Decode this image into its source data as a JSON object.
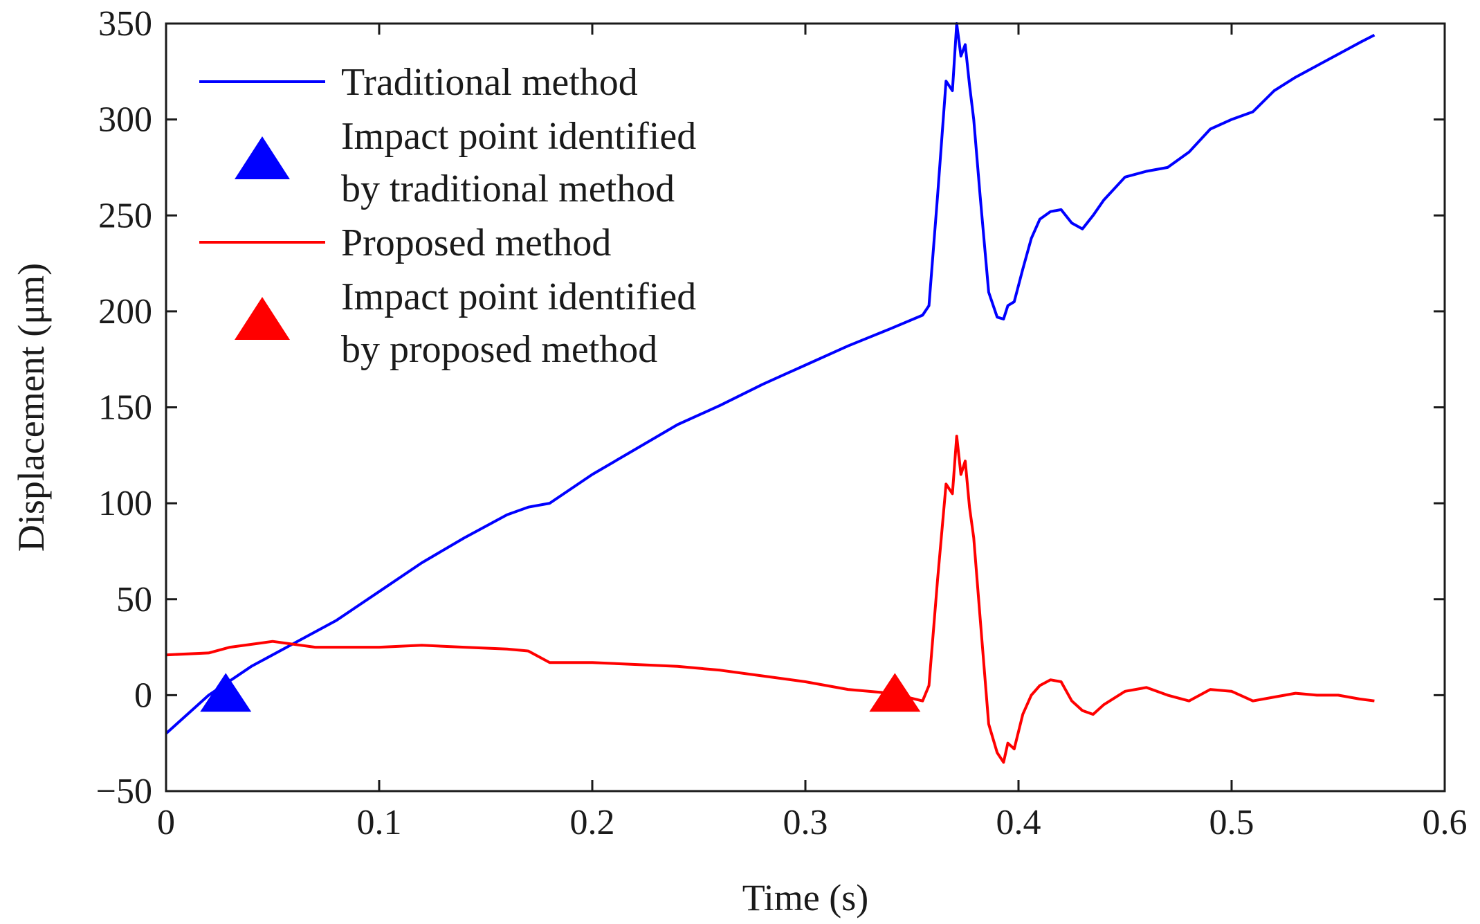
{
  "chart_data": {
    "type": "line",
    "title": "",
    "xlabel": "Time (s)",
    "ylabel": "Displacement (μm)",
    "xlim": [
      0,
      0.6
    ],
    "ylim": [
      -50,
      350
    ],
    "xticks": [
      0,
      0.1,
      0.2,
      0.3,
      0.4,
      0.5,
      0.6
    ],
    "xtick_labels": [
      "0",
      "0.1",
      "0.2",
      "0.3",
      "0.4",
      "0.5",
      "0.6"
    ],
    "yticks": [
      -50,
      0,
      50,
      100,
      150,
      200,
      250,
      300,
      350
    ],
    "ytick_labels": [
      "−50",
      "0",
      "50",
      "100",
      "150",
      "200",
      "250",
      "300",
      "350"
    ],
    "grid": false,
    "legend_position": "top-left",
    "series": [
      {
        "name": "Traditional method",
        "color": "#0000ff",
        "x": [
          0,
          0.02,
          0.04,
          0.06,
          0.08,
          0.1,
          0.12,
          0.14,
          0.16,
          0.17,
          0.18,
          0.2,
          0.22,
          0.24,
          0.26,
          0.28,
          0.3,
          0.32,
          0.34,
          0.355,
          0.358,
          0.362,
          0.366,
          0.369,
          0.371,
          0.373,
          0.375,
          0.377,
          0.379,
          0.382,
          0.386,
          0.39,
          0.393,
          0.395,
          0.398,
          0.402,
          0.406,
          0.41,
          0.415,
          0.42,
          0.425,
          0.43,
          0.435,
          0.44,
          0.45,
          0.46,
          0.47,
          0.48,
          0.49,
          0.5,
          0.51,
          0.52,
          0.53,
          0.54,
          0.55,
          0.56,
          0.567
        ],
        "values": [
          -20,
          0,
          15,
          27,
          39,
          54,
          69,
          82,
          94,
          98,
          100,
          115,
          128,
          141,
          151,
          162,
          172,
          182,
          191,
          198,
          203,
          260,
          320,
          315,
          350,
          333,
          339,
          318,
          300,
          260,
          210,
          197,
          196,
          203,
          205,
          222,
          238,
          248,
          252,
          253,
          246,
          243,
          250,
          258,
          270,
          273,
          275,
          283,
          295,
          300,
          304,
          315,
          322,
          328,
          334,
          340,
          344
        ]
      },
      {
        "name": "Proposed method",
        "color": "#ff0000",
        "x": [
          0,
          0.02,
          0.03,
          0.05,
          0.07,
          0.1,
          0.12,
          0.14,
          0.16,
          0.17,
          0.18,
          0.2,
          0.22,
          0.24,
          0.26,
          0.28,
          0.3,
          0.32,
          0.34,
          0.355,
          0.358,
          0.362,
          0.366,
          0.369,
          0.371,
          0.373,
          0.375,
          0.377,
          0.379,
          0.382,
          0.386,
          0.39,
          0.393,
          0.395,
          0.398,
          0.402,
          0.406,
          0.41,
          0.415,
          0.42,
          0.425,
          0.43,
          0.435,
          0.44,
          0.45,
          0.46,
          0.47,
          0.48,
          0.49,
          0.5,
          0.51,
          0.52,
          0.53,
          0.54,
          0.55,
          0.56,
          0.567
        ],
        "values": [
          21,
          22,
          25,
          28,
          25,
          25,
          26,
          25,
          24,
          23,
          17,
          17,
          16,
          15,
          13,
          10,
          7,
          3,
          1,
          -3,
          5,
          60,
          110,
          105,
          135,
          115,
          122,
          98,
          82,
          40,
          -15,
          -30,
          -35,
          -25,
          -28,
          -10,
          0,
          5,
          8,
          7,
          -3,
          -8,
          -10,
          -5,
          2,
          4,
          0,
          -3,
          3,
          2,
          -3,
          -1,
          1,
          0,
          0,
          -2,
          -3
        ]
      }
    ],
    "markers": [
      {
        "name": "Impact point identified by traditional method",
        "x": 0.028,
        "y": 0,
        "shape": "triangle",
        "color": "#0000ff"
      },
      {
        "name": "Impact point identified by proposed method",
        "x": 0.342,
        "y": 0,
        "shape": "triangle",
        "color": "#ff0000"
      }
    ],
    "legend": [
      {
        "kind": "line",
        "color": "#0000ff",
        "lines": [
          "Traditional method"
        ]
      },
      {
        "kind": "marker",
        "color": "#0000ff",
        "lines": [
          "Impact point identified",
          "by traditional method"
        ]
      },
      {
        "kind": "line",
        "color": "#ff0000",
        "lines": [
          "Proposed method"
        ]
      },
      {
        "kind": "marker",
        "color": "#ff0000",
        "lines": [
          "Impact point identified",
          "by proposed method"
        ]
      }
    ]
  }
}
